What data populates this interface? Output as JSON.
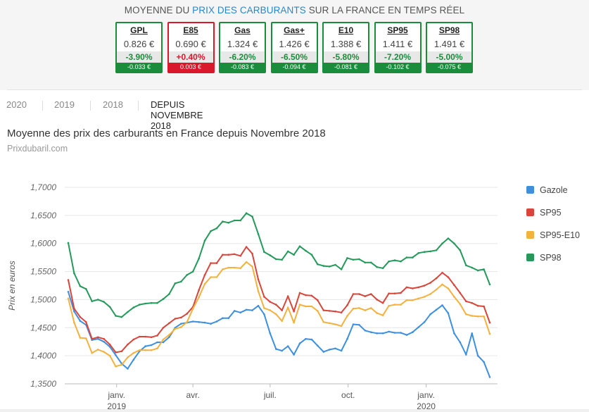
{
  "ticker": {
    "title_prefix": "MOYENNE DU ",
    "title_link": "PRIX DES CARBURANTS",
    "title_suffix": " SUR LA FRANCE EN TEMPS RÉEL",
    "cards": [
      {
        "name": "GPL",
        "price": "0.826 €",
        "pct": "-3.90%",
        "abs": "-0.033 €",
        "direction": "down"
      },
      {
        "name": "E85",
        "price": "0.690 €",
        "pct": "+0.40%",
        "abs": "0.003 €",
        "direction": "up"
      },
      {
        "name": "Gas",
        "price": "1.324 €",
        "pct": "-6.20%",
        "abs": "-0.083 €",
        "direction": "down"
      },
      {
        "name": "Gas+",
        "price": "1.426 €",
        "pct": "-6.50%",
        "abs": "-0.094 €",
        "direction": "down"
      },
      {
        "name": "E10",
        "price": "1.388 €",
        "pct": "-5.80%",
        "abs": "-0.081 €",
        "direction": "down"
      },
      {
        "name": "SP95",
        "price": "1.411 €",
        "pct": "-7.20%",
        "abs": "-0.102 €",
        "direction": "down"
      },
      {
        "name": "SP98",
        "price": "1.491 €",
        "pct": "-5.00%",
        "abs": "-0.075 €",
        "direction": "down"
      }
    ],
    "colors": {
      "down": "#1a8d3c",
      "up": "#d9182c",
      "link": "#2b86c9"
    }
  },
  "tabs": [
    {
      "label": "2020",
      "active": false
    },
    {
      "label": "2019",
      "active": false
    },
    {
      "label": "2018",
      "active": false
    },
    {
      "label": "DEPUIS NOVEMBRE 2018",
      "active": true
    }
  ],
  "chart": {
    "title": "Moyenne des prix des carburants en France depuis Novembre 2018",
    "subtitle": "Prixdubaril.com"
  },
  "chart_data": {
    "type": "line",
    "ylabel": "Prix en euros",
    "xlabel": "",
    "ylim": [
      1.35,
      1.7
    ],
    "yticks": [
      "1,3500",
      "1,4000",
      "1,4500",
      "1,5000",
      "1,5500",
      "1,6000",
      "1,6500",
      "1,7000"
    ],
    "yticks_values": [
      1.35,
      1.4,
      1.45,
      1.5,
      1.55,
      1.6,
      1.65,
      1.7
    ],
    "x_domain": [
      "2018-11-05",
      "2020-03-16"
    ],
    "xticks": [
      {
        "date": "2019-01-01",
        "label": "janv.",
        "sublabel": "2019"
      },
      {
        "date": "2019-04-01",
        "label": "avr.",
        "sublabel": ""
      },
      {
        "date": "2019-07-01",
        "label": "juil.",
        "sublabel": ""
      },
      {
        "date": "2019-10-01",
        "label": "oct.",
        "sublabel": ""
      },
      {
        "date": "2020-01-01",
        "label": "janv.",
        "sublabel": "2020"
      }
    ],
    "grid": true,
    "legend_position": "right",
    "x": [
      "2018-11-05",
      "2018-11-12",
      "2018-11-19",
      "2018-11-26",
      "2018-12-03",
      "2018-12-10",
      "2018-12-17",
      "2018-12-24",
      "2018-12-31",
      "2019-01-07",
      "2019-01-14",
      "2019-01-21",
      "2019-01-28",
      "2019-02-04",
      "2019-02-11",
      "2019-02-18",
      "2019-02-25",
      "2019-03-04",
      "2019-03-11",
      "2019-03-18",
      "2019-03-25",
      "2019-04-01",
      "2019-04-08",
      "2019-04-15",
      "2019-04-22",
      "2019-04-29",
      "2019-05-06",
      "2019-05-13",
      "2019-05-20",
      "2019-05-27",
      "2019-06-03",
      "2019-06-10",
      "2019-06-17",
      "2019-06-24",
      "2019-07-01",
      "2019-07-08",
      "2019-07-15",
      "2019-07-22",
      "2019-07-29",
      "2019-08-05",
      "2019-08-12",
      "2019-08-19",
      "2019-08-26",
      "2019-09-02",
      "2019-09-09",
      "2019-09-16",
      "2019-09-23",
      "2019-09-30",
      "2019-10-07",
      "2019-10-14",
      "2019-10-21",
      "2019-10-28",
      "2019-11-04",
      "2019-11-11",
      "2019-11-18",
      "2019-11-25",
      "2019-12-02",
      "2019-12-09",
      "2019-12-16",
      "2019-12-23",
      "2019-12-30",
      "2020-01-06",
      "2020-01-13",
      "2020-01-20",
      "2020-01-27",
      "2020-02-03",
      "2020-02-10",
      "2020-02-17",
      "2020-02-24",
      "2020-03-02",
      "2020-03-09",
      "2020-03-16"
    ],
    "series": [
      {
        "name": "Gazole",
        "color": "#3d8fe0",
        "values": [
          1.514,
          1.479,
          1.462,
          1.455,
          1.428,
          1.43,
          1.425,
          1.416,
          1.401,
          1.386,
          1.377,
          1.393,
          1.408,
          1.417,
          1.419,
          1.424,
          1.424,
          1.433,
          1.45,
          1.457,
          1.459,
          1.461,
          1.46,
          1.459,
          1.457,
          1.461,
          1.467,
          1.467,
          1.48,
          1.477,
          1.482,
          1.481,
          1.489,
          1.474,
          1.44,
          1.412,
          1.409,
          1.417,
          1.402,
          1.422,
          1.43,
          1.429,
          1.418,
          1.407,
          1.411,
          1.413,
          1.409,
          1.43,
          1.456,
          1.455,
          1.445,
          1.442,
          1.44,
          1.44,
          1.443,
          1.441,
          1.441,
          1.437,
          1.442,
          1.451,
          1.46,
          1.474,
          1.482,
          1.49,
          1.476,
          1.44,
          1.424,
          1.402,
          1.44,
          1.4,
          1.389,
          1.362
        ]
      },
      {
        "name": "SP95",
        "color": "#d9453a",
        "values": [
          1.535,
          1.484,
          1.469,
          1.46,
          1.43,
          1.433,
          1.43,
          1.42,
          1.406,
          1.408,
          1.42,
          1.429,
          1.434,
          1.434,
          1.433,
          1.436,
          1.45,
          1.458,
          1.466,
          1.468,
          1.475,
          1.487,
          1.517,
          1.544,
          1.565,
          1.565,
          1.58,
          1.58,
          1.581,
          1.578,
          1.594,
          1.582,
          1.536,
          1.505,
          1.496,
          1.491,
          1.481,
          1.506,
          1.479,
          1.512,
          1.508,
          1.507,
          1.499,
          1.481,
          1.48,
          1.479,
          1.477,
          1.49,
          1.51,
          1.51,
          1.506,
          1.51,
          1.5,
          1.494,
          1.511,
          1.511,
          1.512,
          1.522,
          1.52,
          1.522,
          1.525,
          1.53,
          1.538,
          1.548,
          1.54,
          1.526,
          1.512,
          1.497,
          1.494,
          1.489,
          1.488,
          1.459
        ]
      },
      {
        "name": "SP95-E10",
        "color": "#f4b13e",
        "values": [
          1.502,
          1.459,
          1.432,
          1.431,
          1.405,
          1.411,
          1.407,
          1.4,
          1.381,
          1.384,
          1.397,
          1.405,
          1.41,
          1.41,
          1.41,
          1.413,
          1.429,
          1.437,
          1.448,
          1.451,
          1.46,
          1.484,
          1.504,
          1.528,
          1.54,
          1.54,
          1.554,
          1.557,
          1.557,
          1.556,
          1.567,
          1.559,
          1.515,
          1.485,
          1.481,
          1.474,
          1.462,
          1.486,
          1.459,
          1.491,
          1.488,
          1.488,
          1.48,
          1.46,
          1.458,
          1.456,
          1.453,
          1.471,
          1.484,
          1.485,
          1.481,
          1.485,
          1.476,
          1.472,
          1.489,
          1.491,
          1.491,
          1.499,
          1.499,
          1.502,
          1.505,
          1.51,
          1.518,
          1.527,
          1.52,
          1.505,
          1.492,
          1.474,
          1.471,
          1.47,
          1.47,
          1.439
        ]
      },
      {
        "name": "SP98",
        "color": "#239a5a",
        "values": [
          1.601,
          1.547,
          1.524,
          1.519,
          1.497,
          1.5,
          1.496,
          1.487,
          1.471,
          1.469,
          1.478,
          1.486,
          1.491,
          1.493,
          1.494,
          1.494,
          1.501,
          1.51,
          1.529,
          1.532,
          1.544,
          1.55,
          1.573,
          1.605,
          1.622,
          1.627,
          1.639,
          1.637,
          1.641,
          1.641,
          1.654,
          1.648,
          1.617,
          1.585,
          1.579,
          1.572,
          1.571,
          1.586,
          1.58,
          1.595,
          1.587,
          1.58,
          1.563,
          1.56,
          1.559,
          1.562,
          1.554,
          1.574,
          1.571,
          1.572,
          1.566,
          1.566,
          1.558,
          1.556,
          1.568,
          1.57,
          1.568,
          1.575,
          1.575,
          1.583,
          1.585,
          1.586,
          1.588,
          1.6,
          1.609,
          1.6,
          1.588,
          1.561,
          1.557,
          1.552,
          1.554,
          1.527
        ]
      }
    ]
  }
}
